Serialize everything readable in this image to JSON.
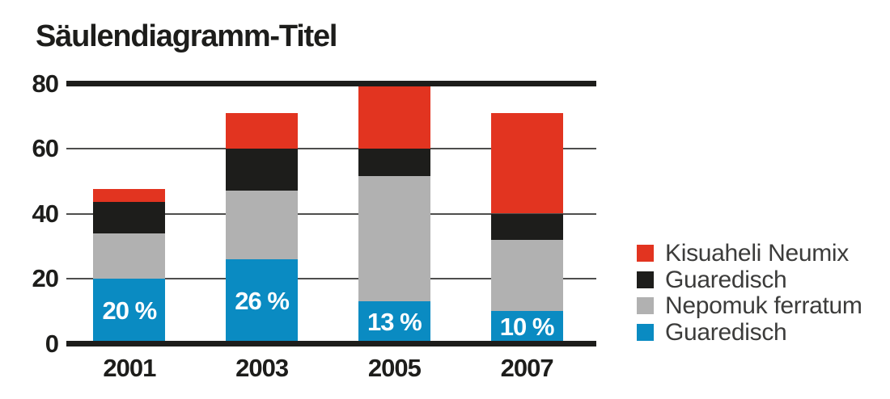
{
  "colors": {
    "background": "#ffffff",
    "red": "#e23420",
    "black": "#1d1d1b",
    "gray": "#b1b1b1",
    "blue": "#0a8bc2",
    "grid_thin": "#4e4e4d",
    "grid_thick": "#1d1d1b",
    "text_dark": "#1d1d1b",
    "legend_text": "#3c3c3b",
    "bar_label_text": "#ffffff"
  },
  "chart_data": {
    "type": "bar",
    "stacked": true,
    "title": "Säulendiagramm-Titel",
    "xlabel": "",
    "ylabel": "",
    "categories": [
      "2001",
      "2003",
      "2005",
      "2007"
    ],
    "series": [
      {
        "name": "Guaredisch",
        "color_key": "blue",
        "color": "#0a8bc2",
        "values": [
          20,
          26,
          13,
          10
        ]
      },
      {
        "name": "Nepomuk ferratum",
        "color_key": "gray",
        "color": "#b1b1b1",
        "values": [
          14,
          21,
          38.5,
          22
        ]
      },
      {
        "name": "Guaredisch",
        "color_key": "black",
        "color": "#1d1d1b",
        "values": [
          9.5,
          13,
          8.5,
          8
        ]
      },
      {
        "name": "Kisuaheli Neumix",
        "color_key": "red",
        "color": "#e23420",
        "values": [
          4,
          11,
          19.5,
          31
        ]
      }
    ],
    "bar_totals": [
      47.5,
      71,
      79.5,
      71
    ],
    "bar_labels": [
      "20 %",
      "26 %",
      "13 %",
      "10 %"
    ],
    "y_ticks": [
      0,
      20,
      40,
      60,
      80
    ],
    "ylim": [
      0,
      80
    ],
    "grid": true,
    "legend_position": "right",
    "legend": [
      {
        "label": "Kisuaheli Neumix",
        "color_key": "red"
      },
      {
        "label": "Guaredisch",
        "color_key": "black"
      },
      {
        "label": "Nepomuk ferratum",
        "color_key": "gray"
      },
      {
        "label": "Guaredisch",
        "color_key": "blue"
      }
    ]
  }
}
